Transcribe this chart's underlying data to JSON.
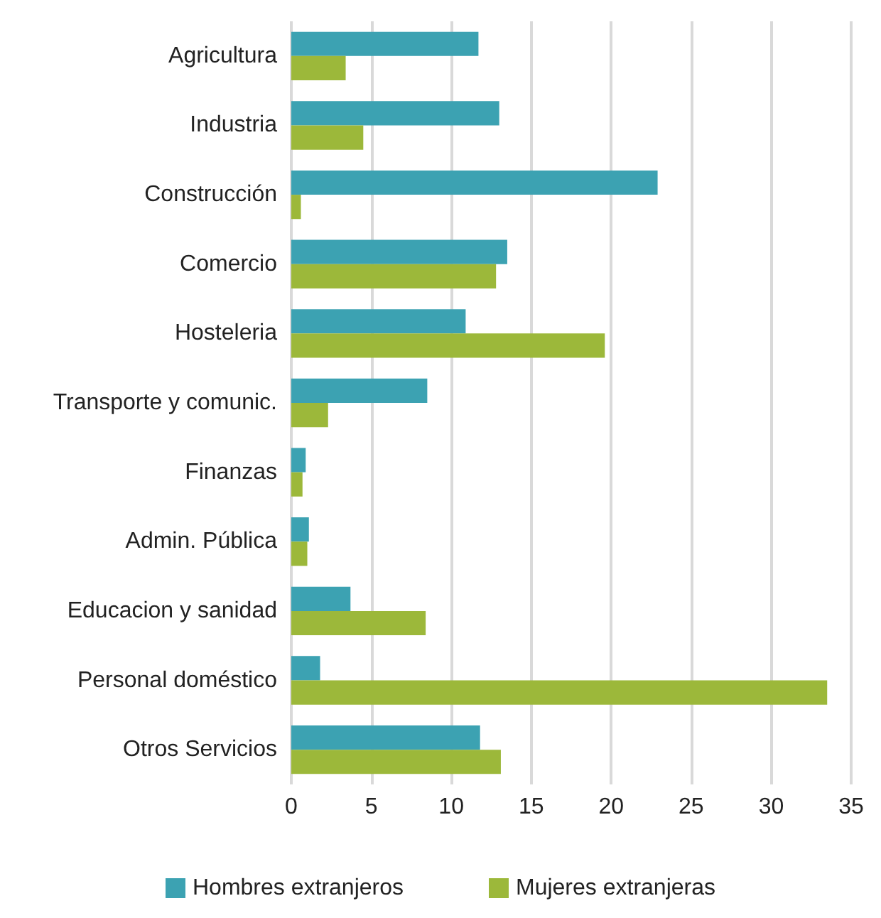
{
  "chart_data": {
    "type": "bar",
    "orientation": "horizontal",
    "categories": [
      "Agricultura",
      "Industria",
      "Construcción",
      "Comercio",
      "Hosteleria",
      "Transporte y comunic.",
      "Finanzas",
      "Admin. Pública",
      "Educacion y sanidad",
      "Personal doméstico",
      "Otros Servicios"
    ],
    "series": [
      {
        "name": "Hombres extranjeros",
        "color": "#3ca2b2",
        "values": [
          11.7,
          13.0,
          22.9,
          13.5,
          10.9,
          8.5,
          0.9,
          1.1,
          3.7,
          1.8,
          11.8
        ]
      },
      {
        "name": "Mujeres extranjeras",
        "color": "#9cb83a",
        "values": [
          3.4,
          4.5,
          0.6,
          12.8,
          19.6,
          2.3,
          0.7,
          1.0,
          8.4,
          33.5,
          13.1
        ]
      }
    ],
    "xlim": [
      0,
      35
    ],
    "xticks": [
      0,
      5,
      10,
      15,
      20,
      25,
      30,
      35
    ],
    "grid": "x",
    "legend": "bottom"
  }
}
